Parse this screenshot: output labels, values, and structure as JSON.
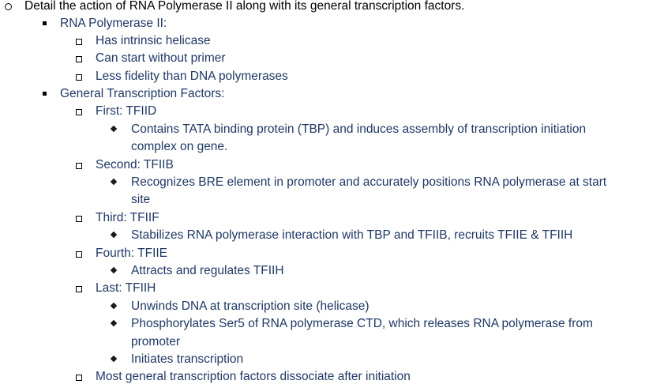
{
  "outline": {
    "question": "Detail the action of RNA Polymerase II along with its general transcription factors.",
    "rnap": {
      "heading": "RNA Polymerase II:",
      "items": [
        "Has intrinsic helicase",
        "Can start without primer",
        "Less fidelity than DNA polymerases"
      ]
    },
    "gtf": {
      "heading": "General Transcription Factors:",
      "first": {
        "label": "First: TFIID",
        "detail_line1": "Contains TATA binding protein (TBP) and induces assembly of transcription initiation",
        "detail_line2": "complex on gene."
      },
      "second": {
        "label": "Second: TFIIB",
        "detail_line1": "Recognizes BRE element in promoter and accurately positions RNA polymerase at start",
        "detail_line2": "site"
      },
      "third": {
        "label": "Third: TFIIF",
        "detail_line1": "Stabilizes RNA polymerase interaction with TBP and TFIIB, recruits TFIIE & TFIIH"
      },
      "fourth": {
        "label": "Fourth: TFIIE",
        "detail_line1": "Attracts and regulates TFIIH"
      },
      "last": {
        "label": "Last: TFIIH",
        "detail_a": "Unwinds DNA at transcription site (helicase)",
        "detail_b_line1": "Phosphorylates Ser5 of RNA polymerase CTD, which releases RNA polymerase from",
        "detail_b_line2": "promoter",
        "detail_c": "Initiates transcription"
      },
      "closing": "Most general transcription factors dissociate after initiation"
    }
  }
}
